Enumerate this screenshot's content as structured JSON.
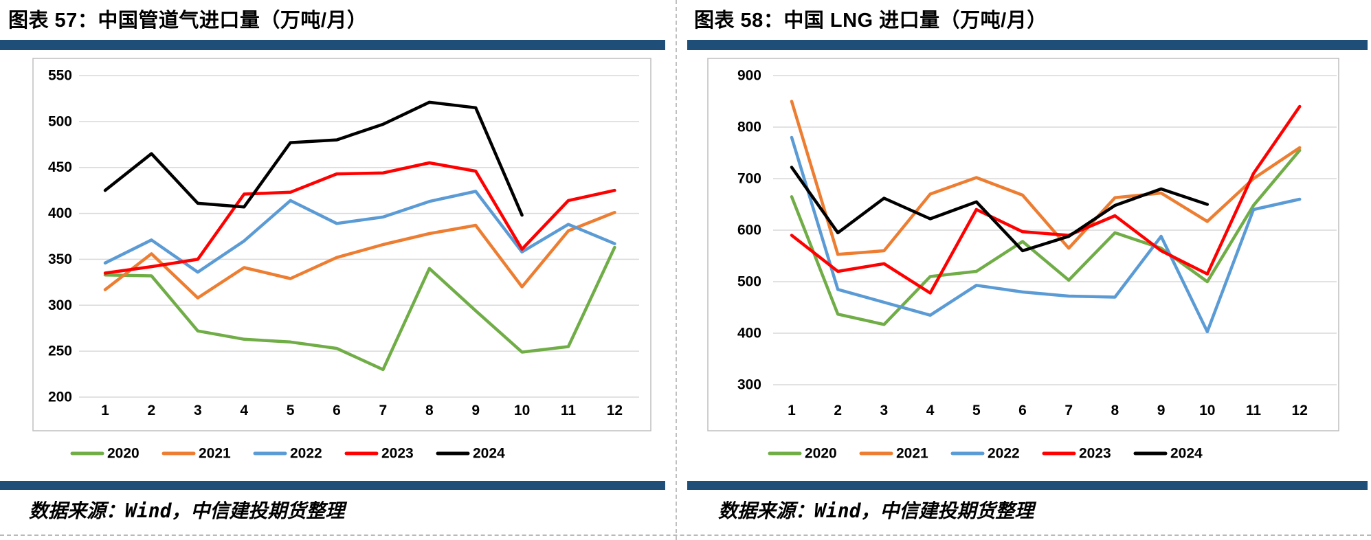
{
  "panels": [
    {
      "title": "图表 57：中国管道气进口量（万吨/月）",
      "source": "数据来源：Wind，中信建投期货整理"
    },
    {
      "title": "图表 58：中国 LNG 进口量（万吨/月）",
      "source": "数据来源：Wind，中信建投期货整理"
    }
  ],
  "colors": {
    "accent_bar": "#1F4E79",
    "gridline": "#D9D9D9",
    "plot_border": "#BFBFBF",
    "series_2020": "#70AD47",
    "series_2021": "#ED7D31",
    "series_2022": "#5B9BD5",
    "series_2023": "#FF0000",
    "series_2024": "#000000"
  },
  "chart_data": [
    {
      "type": "line",
      "title": "图表 57：中国管道气进口量（万吨/月）",
      "categories": [
        "1",
        "2",
        "3",
        "4",
        "5",
        "6",
        "7",
        "8",
        "9",
        "10",
        "11",
        "12"
      ],
      "xlabel": "",
      "ylabel": "",
      "ylim": [
        200,
        550
      ],
      "yticks": [
        550,
        500,
        450,
        400,
        350,
        300,
        250,
        200
      ],
      "grid": true,
      "legend_position": "bottom",
      "series": [
        {
          "name": "2020",
          "color": "#70AD47",
          "values": [
            333,
            332,
            272,
            263,
            260,
            253,
            230,
            340,
            294,
            249,
            255,
            363
          ]
        },
        {
          "name": "2021",
          "color": "#ED7D31",
          "values": [
            317,
            356,
            308,
            341,
            329,
            352,
            366,
            378,
            387,
            320,
            381,
            401
          ]
        },
        {
          "name": "2022",
          "color": "#5B9BD5",
          "values": [
            346,
            371,
            336,
            370,
            414,
            389,
            396,
            413,
            424,
            358,
            388,
            367
          ]
        },
        {
          "name": "2023",
          "color": "#FF0000",
          "values": [
            335,
            342,
            350,
            421,
            423,
            443,
            444,
            455,
            446,
            361,
            414,
            425
          ]
        },
        {
          "name": "2024",
          "color": "#000000",
          "values": [
            425,
            465,
            411,
            407,
            477,
            480,
            497,
            521,
            515,
            398,
            null,
            null
          ]
        }
      ]
    },
    {
      "type": "line",
      "title": "图表 58：中国 LNG 进口量（万吨/月）",
      "categories": [
        "1",
        "2",
        "3",
        "4",
        "5",
        "6",
        "7",
        "8",
        "9",
        "10",
        "11",
        "12"
      ],
      "xlabel": "",
      "ylabel": "",
      "ylim": [
        300,
        900
      ],
      "yticks": [
        900,
        800,
        700,
        600,
        500,
        400,
        300
      ],
      "grid": true,
      "legend_position": "bottom",
      "series": [
        {
          "name": "2020",
          "color": "#70AD47",
          "values": [
            665,
            437,
            417,
            510,
            520,
            578,
            503,
            595,
            565,
            500,
            648,
            755
          ]
        },
        {
          "name": "2021",
          "color": "#ED7D31",
          "values": [
            850,
            553,
            560,
            670,
            702,
            668,
            565,
            663,
            672,
            617,
            700,
            760
          ]
        },
        {
          "name": "2022",
          "color": "#5B9BD5",
          "values": [
            780,
            485,
            460,
            435,
            493,
            480,
            472,
            470,
            588,
            403,
            640,
            660
          ]
        },
        {
          "name": "2023",
          "color": "#FF0000",
          "values": [
            590,
            520,
            535,
            478,
            640,
            597,
            590,
            628,
            560,
            515,
            710,
            840
          ]
        },
        {
          "name": "2024",
          "color": "#000000",
          "values": [
            722,
            595,
            662,
            622,
            655,
            560,
            588,
            648,
            680,
            650,
            null,
            null
          ]
        }
      ]
    }
  ]
}
